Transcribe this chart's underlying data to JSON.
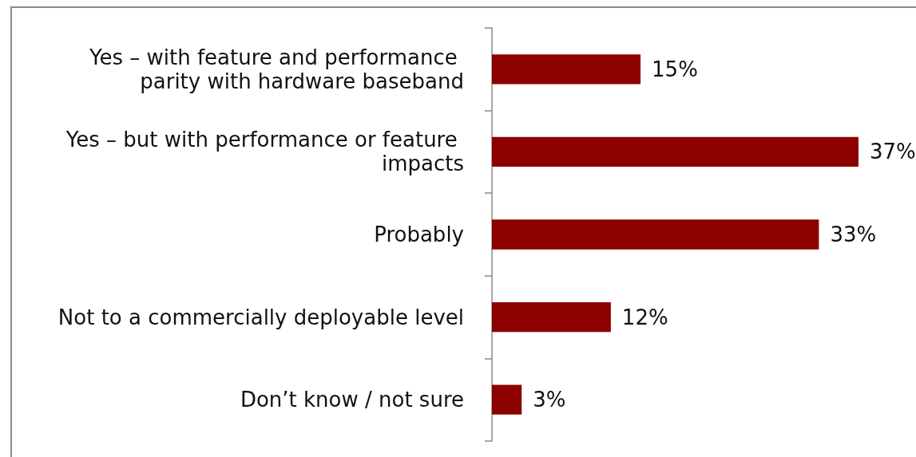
{
  "chart_data": {
    "type": "bar",
    "orientation": "horizontal",
    "categories": [
      "Yes – with feature and performance parity with hardware baseband",
      "Yes – but with performance or feature impacts",
      "Probably",
      "Not to a commercially deployable level",
      "Don’t know / not sure"
    ],
    "values": [
      15,
      37,
      33,
      12,
      3
    ],
    "color": "#8c0000",
    "value_labels": [
      "15%",
      "37%",
      "33%",
      "12%",
      "3%"
    ]
  }
}
